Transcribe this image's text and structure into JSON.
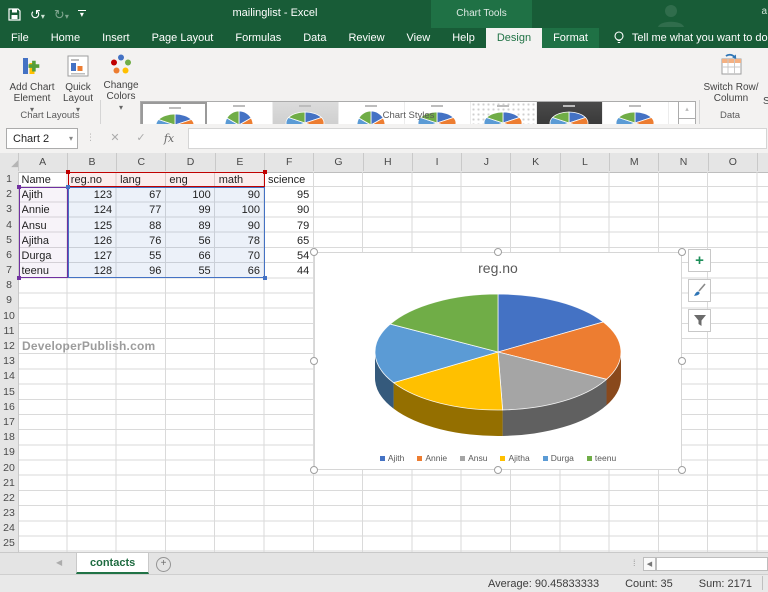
{
  "titlebar": {
    "title": "mailinglist - Excel",
    "contextual_label": "Chart Tools",
    "account_hint": "a",
    "qat_icons": [
      "save-icon",
      "undo-icon",
      "redo-icon",
      "customize-qat-icon"
    ],
    "colors": {
      "titlebar": "#185C37",
      "contextual_band": "#1F7145",
      "accent": "#217346"
    }
  },
  "tabs": {
    "items": [
      "File",
      "Home",
      "Insert",
      "Page Layout",
      "Formulas",
      "Data",
      "Review",
      "View",
      "Help",
      "Design",
      "Format"
    ],
    "active": "Design",
    "contextual": [
      "Design",
      "Format"
    ],
    "tell_me": "Tell me what you want to do"
  },
  "ribbon": {
    "buttons": {
      "add_chart_element": "Add Chart Element",
      "quick_layout": "Quick Layout",
      "change_colors": "Change Colors",
      "switch_row_column": "Switch Row/ Column"
    },
    "group_labels": {
      "chart_layouts": "Chart Layouts",
      "chart_styles": "Chart Styles",
      "data": "Data"
    },
    "partial_next_label": "S",
    "gallery_styles": [
      {
        "name": "style-1",
        "bg": "white",
        "variant": "3d",
        "selected": true
      },
      {
        "name": "style-2",
        "bg": "white",
        "variant": "flat"
      },
      {
        "name": "style-3",
        "bg": "gradient",
        "variant": "3d",
        "highlighted": true
      },
      {
        "name": "style-4",
        "bg": "white",
        "variant": "flat"
      },
      {
        "name": "style-5",
        "bg": "white",
        "variant": "3d"
      },
      {
        "name": "style-6",
        "bg": "dots",
        "variant": "3d"
      },
      {
        "name": "style-7",
        "bg": "black",
        "variant": "3d"
      },
      {
        "name": "style-8",
        "bg": "white",
        "variant": "3d"
      }
    ]
  },
  "formula_bar": {
    "name_box_value": "Chart 2",
    "formula_value": ""
  },
  "sheet": {
    "column_letters": [
      "A",
      "B",
      "C",
      "D",
      "E",
      "F",
      "G",
      "H",
      "I",
      "J",
      "K",
      "L",
      "M",
      "N",
      "O"
    ],
    "row_count": 25,
    "watermark": "DeveloperPublish.com",
    "table": {
      "headers": [
        "Name",
        "reg.no",
        "lang",
        "eng",
        "math",
        "science"
      ],
      "rows": [
        [
          "Ajith",
          123,
          67,
          100,
          90,
          95
        ],
        [
          "Annie",
          124,
          77,
          99,
          100,
          90
        ],
        [
          "Ansu",
          125,
          88,
          89,
          90,
          79
        ],
        [
          "Ajitha",
          126,
          76,
          56,
          78,
          65
        ],
        [
          "Durga",
          127,
          55,
          66,
          70,
          54
        ],
        [
          "teenu",
          128,
          96,
          55,
          66,
          44
        ]
      ]
    },
    "highlight_colors": {
      "series_names": "#C00000",
      "categories": "#7030A0",
      "values": "#4472C4"
    }
  },
  "chart_data": {
    "type": "pie",
    "style": "3d",
    "title": "reg.no",
    "categories": [
      "Ajith",
      "Annie",
      "Ansu",
      "Ajitha",
      "Durga",
      "teenu"
    ],
    "values": [
      123,
      124,
      125,
      126,
      127,
      128
    ],
    "colors": [
      "#4472C4",
      "#ED7D31",
      "#A5A5A5",
      "#FFC000",
      "#5B9BD5",
      "#70AD47"
    ],
    "legend_position": "bottom",
    "start_angle": 0
  },
  "chart_ui": {
    "side_buttons": [
      "chart-elements-plus",
      "chart-styles-brush",
      "chart-filters-funnel"
    ]
  },
  "sheet_tabs": {
    "tabs": [
      "contacts"
    ]
  },
  "status_bar": {
    "items": [
      {
        "name": "average",
        "text": "Average: 90.45833333"
      },
      {
        "name": "count",
        "text": "Count: 35"
      },
      {
        "name": "sum",
        "text": "Sum: 2171"
      }
    ]
  }
}
